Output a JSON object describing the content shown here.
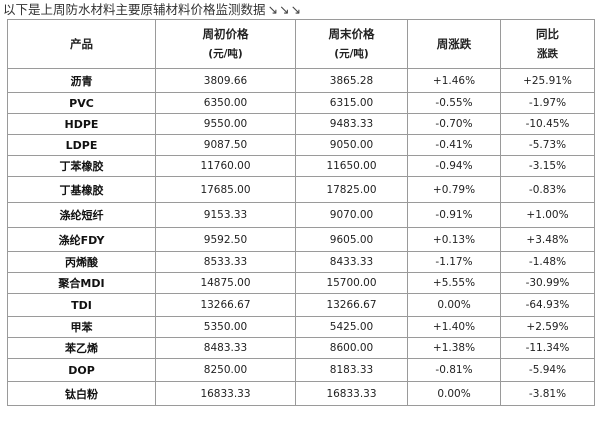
{
  "caption": {
    "text": "以下是上周防水材料主要原辅材料价格监测数据",
    "arrows": "↘↘↘"
  },
  "headers": {
    "product": "产品",
    "start_price_l1": "周初价格",
    "start_price_l2": "(元/吨)",
    "end_price_l1": "周末价格",
    "end_price_l2": "(元/吨)",
    "weekly_change": "周涨跌",
    "yoy_l1": "同比",
    "yoy_l2": "涨跌"
  },
  "rows": [
    {
      "name": "沥青",
      "start": "3809.66",
      "end": "3865.28",
      "weekly": "+1.46%",
      "yoy": "+25.91%",
      "weekly_sign": "pos",
      "yoy_sign": "pos"
    },
    {
      "name": "PVC",
      "start": "6350.00",
      "end": "6315.00",
      "weekly": "-0.55%",
      "yoy": "-1.97%",
      "weekly_sign": "neg",
      "yoy_sign": "neg"
    },
    {
      "name": "HDPE",
      "start": "9550.00",
      "end": "9483.33",
      "weekly": "-0.70%",
      "yoy": "-10.45%",
      "weekly_sign": "neg",
      "yoy_sign": "neg"
    },
    {
      "name": "LDPE",
      "start": "9087.50",
      "end": "9050.00",
      "weekly": "-0.41%",
      "yoy": "-5.73%",
      "weekly_sign": "neg",
      "yoy_sign": "neg"
    },
    {
      "name": "丁苯橡胶",
      "start": "11760.00",
      "end": "11650.00",
      "weekly": "-0.94%",
      "yoy": "-3.15%",
      "weekly_sign": "neg",
      "yoy_sign": "neg"
    },
    {
      "name": "丁基橡胶",
      "start": "17685.00",
      "end": "17825.00",
      "weekly": "+0.79%",
      "yoy": "-0.83%",
      "weekly_sign": "pos",
      "yoy_sign": "neg"
    },
    {
      "name": "涤纶短纤",
      "start": "9153.33",
      "end": "9070.00",
      "weekly": "-0.91%",
      "yoy": "+1.00%",
      "weekly_sign": "neg",
      "yoy_sign": "pos"
    },
    {
      "name": "涤纶FDY",
      "start": "9592.50",
      "end": "9605.00",
      "weekly": "+0.13%",
      "yoy": "+3.48%",
      "weekly_sign": "pos",
      "yoy_sign": "pos"
    },
    {
      "name": "丙烯酸",
      "start": "8533.33",
      "end": "8433.33",
      "weekly": "-1.17%",
      "yoy": "-1.48%",
      "weekly_sign": "neg",
      "yoy_sign": "neg"
    },
    {
      "name": "聚合MDI",
      "start": "14875.00",
      "end": "15700.00",
      "weekly": "+5.55%",
      "yoy": "-30.99%",
      "weekly_sign": "pos",
      "yoy_sign": "neg"
    },
    {
      "name": "TDI",
      "start": "13266.67",
      "end": "13266.67",
      "weekly": "0.00%",
      "yoy": "-64.93%",
      "weekly_sign": "zero",
      "yoy_sign": "neg"
    },
    {
      "name": "甲苯",
      "start": "5350.00",
      "end": "5425.00",
      "weekly": "+1.40%",
      "yoy": "+2.59%",
      "weekly_sign": "pos",
      "yoy_sign": "pos"
    },
    {
      "name": "苯乙烯",
      "start": "8483.33",
      "end": "8600.00",
      "weekly": "+1.38%",
      "yoy": "-11.34%",
      "weekly_sign": "pos",
      "yoy_sign": "neg"
    },
    {
      "name": "DOP",
      "start": "8250.00",
      "end": "8183.33",
      "weekly": "-0.81%",
      "yoy": "-5.94%",
      "weekly_sign": "neg",
      "yoy_sign": "neg"
    },
    {
      "name": "钛白粉",
      "start": "16833.33",
      "end": "16833.33",
      "weekly": "0.00%",
      "yoy": "-3.81%",
      "weekly_sign": "zero",
      "yoy_sign": "neg"
    }
  ],
  "colors": {
    "positive": "#e0321c",
    "negative": "#2f9b3a",
    "neutral": "#222222",
    "border": "#9a9a9a"
  }
}
